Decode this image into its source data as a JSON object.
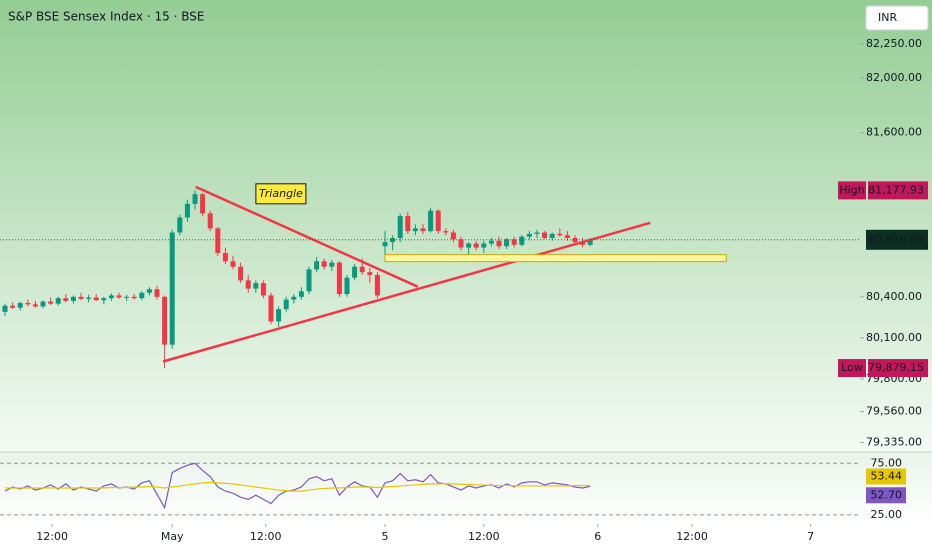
{
  "header": {
    "title": "S&P BSE Sensex Index · 15 · BSE",
    "currency": "INR"
  },
  "chart_data": [
    {
      "type": "candlestick",
      "xlim": [
        -0.66,
        112.5
      ],
      "ylim": [
        79280,
        82570
      ],
      "xticks": [
        {
          "value": 6.2,
          "label": "12:00"
        },
        {
          "value": 22,
          "label": "May"
        },
        {
          "value": 34.3,
          "label": "12:00"
        },
        {
          "value": 50,
          "label": "5"
        },
        {
          "value": 63,
          "label": "12:00"
        },
        {
          "value": 78,
          "label": "6"
        },
        {
          "value": 90.4,
          "label": "12:00"
        },
        {
          "value": 106,
          "label": "7"
        }
      ],
      "yticks": [
        {
          "value": 82250,
          "label": "82,250.00"
        },
        {
          "value": 82000,
          "label": "82,000.00"
        },
        {
          "value": 81600,
          "label": "81,600.00"
        },
        {
          "value": 80400,
          "label": "80,400.00"
        },
        {
          "value": 80100,
          "label": "80,100.00"
        },
        {
          "value": 79800,
          "label": "79,800.00"
        },
        {
          "value": 79560,
          "label": "79,560.00"
        },
        {
          "value": 79335,
          "label": "79,335.00"
        }
      ],
      "up_color": "#089981",
      "down_color": "#f23645",
      "open": [
        80290,
        80335,
        80320,
        80355,
        80345,
        80330,
        80365,
        80350,
        80390,
        80370,
        80400,
        80385,
        80395,
        80375,
        80390,
        80410,
        80395,
        80400,
        80390,
        80430,
        80455,
        80400,
        80050,
        80870,
        80980,
        81080,
        81150,
        81010,
        80900,
        80720,
        80660,
        80620,
        80520,
        80460,
        80500,
        80410,
        80220,
        80310,
        80380,
        80400,
        80440,
        80600,
        80660,
        80620,
        80650,
        80420,
        80540,
        80620,
        80580,
        80560,
        80770,
        80800,
        80830,
        80990,
        80880,
        80900,
        80880,
        81030,
        80880,
        80870,
        80820,
        80760,
        80790,
        80760,
        80790,
        80810,
        80770,
        80820,
        80780,
        80840,
        80860,
        80870,
        80830,
        80860,
        80850,
        80830,
        80800,
        80780
      ],
      "high": [
        80350,
        80360,
        80365,
        80380,
        80370,
        80375,
        80395,
        80400,
        80420,
        80410,
        80430,
        80415,
        80420,
        80400,
        80425,
        80430,
        80415,
        80420,
        80440,
        80470,
        80480,
        80410,
        80890,
        81000,
        81110,
        81177.93,
        81160,
        81030,
        80910,
        80760,
        80700,
        80650,
        80560,
        80520,
        80520,
        80430,
        80330,
        80400,
        80420,
        80470,
        80620,
        80690,
        80680,
        80670,
        80660,
        80560,
        80640,
        80680,
        80610,
        80580,
        80880,
        80850,
        81010,
        81020,
        80930,
        80930,
        81050,
        81040,
        80900,
        80890,
        80840,
        80800,
        80810,
        80810,
        80830,
        80840,
        80830,
        80840,
        80850,
        80880,
        80890,
        80880,
        80870,
        80900,
        80880,
        80850,
        80830,
        80830
      ],
      "low": [
        80260,
        80310,
        80300,
        80330,
        80320,
        80315,
        80340,
        80335,
        80360,
        80350,
        80375,
        80360,
        80370,
        80345,
        80370,
        80385,
        80370,
        80380,
        80375,
        80410,
        80380,
        79879.15,
        80020,
        80850,
        80950,
        81040,
        80990,
        80880,
        80700,
        80640,
        80600,
        80500,
        80430,
        80430,
        80390,
        80200,
        80180,
        80290,
        80350,
        80380,
        80420,
        80580,
        80600,
        80590,
        80400,
        80400,
        80520,
        80560,
        80500,
        80390,
        80700,
        80740,
        80800,
        80860,
        80850,
        80860,
        80870,
        80860,
        80850,
        80800,
        80740,
        80700,
        80740,
        80720,
        80770,
        80750,
        80750,
        80760,
        80770,
        80820,
        80830,
        80820,
        80810,
        80840,
        80810,
        80790,
        80760,
        80770
      ],
      "close": [
        80335,
        80320,
        80355,
        80345,
        80330,
        80365,
        80350,
        80390,
        80370,
        80400,
        80385,
        80395,
        80375,
        80390,
        80410,
        80395,
        80400,
        80390,
        80430,
        80455,
        80400,
        80050,
        80870,
        80980,
        81080,
        81150,
        81010,
        80900,
        80720,
        80660,
        80620,
        80520,
        80460,
        80500,
        80410,
        80220,
        80310,
        80380,
        80400,
        80440,
        80600,
        80660,
        80620,
        80650,
        80420,
        80540,
        80620,
        80580,
        80560,
        80410,
        80800,
        80830,
        80990,
        80880,
        80900,
        80880,
        81030,
        80880,
        80870,
        80820,
        80760,
        80790,
        80760,
        80790,
        80810,
        80770,
        80820,
        80780,
        80840,
        80860,
        80870,
        80830,
        80860,
        80850,
        80830,
        80800,
        80780,
        80816.8
      ],
      "last_price": {
        "value": 80816.8,
        "label": "80,816.80"
      },
      "high_marker": {
        "name": "High",
        "value": 81177.93,
        "label": "81,177.93"
      },
      "low_marker": {
        "name": "Low",
        "value": 79879.15,
        "label": "79,879.15"
      },
      "drawings": [
        {
          "type": "trendline",
          "color": "#f23645",
          "points": [
            [
              25.1,
              81204
            ],
            [
              54.3,
              80474
            ]
          ]
        },
        {
          "type": "trendline",
          "color": "#f23645",
          "points": [
            [
              20.8,
              79927
            ],
            [
              84.9,
              80941
            ]
          ]
        },
        {
          "type": "rectangle",
          "color": "#fff59d",
          "x": [
            50,
            94.9
          ],
          "y": [
            80657,
            80708
          ]
        },
        {
          "type": "label",
          "text": "Triangle",
          "x": 36.3,
          "y": 81153
        }
      ]
    },
    {
      "type": "line",
      "xlim": [
        -0.66,
        112.5
      ],
      "ylim": [
        20,
        83
      ],
      "yticks": [
        {
          "value": 75,
          "label": "75.00"
        },
        {
          "value": 25,
          "label": "25.00"
        }
      ],
      "series": [
        {
          "color": "#7e57c2",
          "values": [
            48,
            52,
            50,
            53,
            49,
            51,
            54,
            50,
            55,
            49,
            52,
            50,
            48,
            53,
            55,
            51,
            52,
            50,
            56,
            58,
            45,
            32,
            66,
            70,
            73,
            75,
            68,
            62,
            52,
            48,
            46,
            42,
            40,
            44,
            40,
            36,
            44,
            48,
            49,
            52,
            60,
            62,
            58,
            60,
            44,
            52,
            57,
            53,
            52,
            42,
            56,
            58,
            65,
            58,
            59,
            57,
            64,
            56,
            55,
            52,
            49,
            53,
            51,
            53,
            54,
            51,
            55,
            52,
            56,
            57,
            57,
            54,
            56,
            55,
            54,
            52,
            51,
            52.7
          ],
          "end_label": {
            "value": 52.7,
            "label": "52.70"
          }
        },
        {
          "color": "#e6c800",
          "values": [
            51,
            51,
            51,
            51,
            51,
            51,
            51,
            51,
            51,
            51,
            51,
            51,
            51,
            51,
            51.5,
            51.5,
            51.5,
            52,
            52,
            52.5,
            52,
            51,
            52,
            53,
            54,
            55,
            56,
            56.5,
            56,
            55.5,
            55,
            54,
            53,
            52,
            51,
            50,
            49,
            48.5,
            48,
            48,
            49,
            50,
            50.5,
            51,
            51,
            51.5,
            52,
            52,
            52,
            51.5,
            52,
            52.5,
            53,
            53.5,
            54,
            54.5,
            55,
            55,
            55,
            55,
            54.5,
            54.5,
            54,
            54,
            53.5,
            53.5,
            53.5,
            53,
            53,
            53,
            53,
            53,
            53,
            53,
            53,
            53.5,
            53.45,
            53.44
          ],
          "end_label": {
            "value": 53.44,
            "label": "53.44"
          }
        }
      ]
    }
  ]
}
